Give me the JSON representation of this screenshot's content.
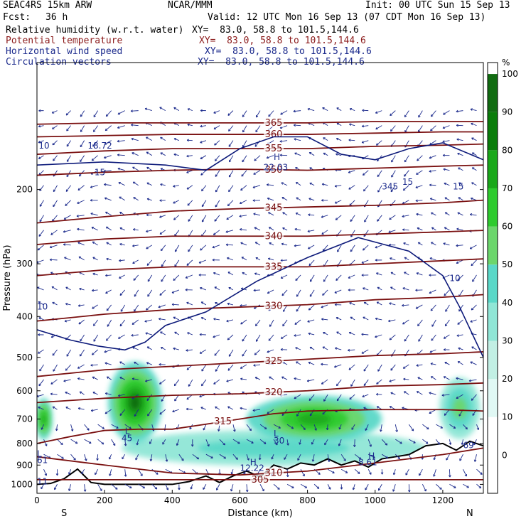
{
  "header": {
    "model": "SEAC4RS 15km ARW",
    "center": "NCAR/MMM",
    "init": "Init: 00 UTC Sun 15 Sep 13",
    "fcst_label": "Fcst:",
    "fcst_value": "36 h",
    "valid": "Valid: 12 UTC Mon 16 Sep 13 (07 CDT Mon 16 Sep 13)"
  },
  "fields": [
    {
      "name": "Relative humidity (w.r.t. water)",
      "xy": "XY=  83.0, 58.8 to 101.5,144.6",
      "color": "#000000"
    },
    {
      "name": "Potential temperature",
      "xy": "XY=  83.0, 58.8 to 101.5,144.6",
      "color": "#8b1a1a"
    },
    {
      "name": "Horizontal wind speed",
      "xy": "XY=  83.0, 58.8 to 101.5,144.6",
      "color": "#1b2a8c"
    },
    {
      "name": "Circulation vectors",
      "xy": "XY=  83.0, 58.8 to 101.5,144.6",
      "color": "#1b2a8c"
    }
  ],
  "chart_data": {
    "type": "heatmap",
    "xlabel": "Distance (km)",
    "ylabel": "Pressure (hPa)",
    "x_ticks": [
      0,
      200,
      400,
      600,
      800,
      1000,
      1200
    ],
    "y_ticks": [
      200,
      300,
      400,
      500,
      600,
      700,
      800,
      900,
      1000
    ],
    "xlim": [
      0,
      1320
    ],
    "ylim": [
      1050,
      100
    ],
    "y_scale": "log",
    "end_labels": {
      "left": "S",
      "right": "N"
    },
    "colorbar": {
      "unit": "%",
      "ticks": [
        0,
        10,
        20,
        30,
        40,
        50,
        60,
        70,
        80,
        90,
        100
      ],
      "colors": [
        "#ffffff",
        "#ffffff",
        "#e0f8f4",
        "#c2efe4",
        "#90e6d6",
        "#5ad8c8",
        "#6cd66c",
        "#2ecb2e",
        "#1aa81a",
        "#0a7d0a",
        "#116b11"
      ]
    },
    "theta_contours": [
      {
        "label": "305",
        "x": [
          0,
          1320
        ],
        "y": [
          975,
          975
        ]
      },
      {
        "label": "310",
        "x": [
          0,
          200,
          400,
          600,
          800,
          1000,
          1200,
          1320
        ],
        "y": [
          860,
          900,
          940,
          950,
          930,
          890,
          850,
          820
        ]
      },
      {
        "label": "315",
        "x": [
          0,
          100,
          200,
          300,
          400,
          500,
          600,
          700,
          800,
          1000,
          1200,
          1320
        ],
        "y": [
          800,
          770,
          745,
          740,
          740,
          720,
          700,
          680,
          670,
          665,
          665,
          670
        ]
      },
      {
        "label": "320",
        "x": [
          0,
          200,
          400,
          600,
          800,
          1000,
          1200,
          1320
        ],
        "y": [
          640,
          625,
          615,
          610,
          600,
          585,
          580,
          575
        ]
      },
      {
        "label": "325",
        "x": [
          0,
          200,
          400,
          600,
          800,
          1000,
          1200,
          1320
        ],
        "y": [
          555,
          535,
          525,
          515,
          505,
          495,
          490,
          485
        ]
      },
      {
        "label": "330",
        "x": [
          0,
          200,
          400,
          600,
          800,
          1000,
          1200,
          1320
        ],
        "y": [
          410,
          395,
          385,
          380,
          375,
          365,
          360,
          355
        ]
      },
      {
        "label": "335",
        "x": [
          0,
          200,
          400,
          600,
          800,
          1000,
          1200,
          1320
        ],
        "y": [
          320,
          310,
          305,
          305,
          305,
          300,
          295,
          292
        ]
      },
      {
        "label": "340",
        "x": [
          0,
          200,
          400,
          600,
          800,
          1000,
          1200,
          1320
        ],
        "y": [
          270,
          262,
          258,
          258,
          258,
          255,
          252,
          250
        ]
      },
      {
        "label": "345",
        "x": [
          0,
          200,
          400,
          600,
          800,
          1000,
          1200,
          1320
        ],
        "y": [
          240,
          232,
          225,
          222,
          220,
          218,
          215,
          212
        ]
      },
      {
        "label": "350",
        "x": [
          0,
          200,
          400,
          600,
          800,
          1000,
          1200,
          1320
        ],
        "y": [
          185,
          182,
          180,
          179,
          180,
          178,
          176,
          175
        ]
      },
      {
        "label": "355",
        "x": [
          0,
          200,
          400,
          600,
          800,
          1000,
          1200,
          1320
        ],
        "y": [
          165,
          162,
          160,
          160,
          160,
          158,
          157,
          156
        ]
      },
      {
        "label": "360",
        "x": [
          0,
          200,
          400,
          600,
          800,
          1000,
          1200,
          1320
        ],
        "y": [
          150,
          149,
          148,
          148,
          148,
          147,
          146,
          146
        ]
      },
      {
        "label": "365",
        "x": [
          0,
          200,
          400,
          600,
          800,
          1000,
          1200,
          1320
        ],
        "y": [
          140,
          139,
          139,
          139,
          139,
          138,
          138,
          138
        ]
      }
    ],
    "wind_contours": [
      {
        "label": "10",
        "x": [
          0,
          100,
          180,
          260,
          320,
          380,
          500,
          650,
          800,
          950,
          1100,
          1200,
          1250,
          1320
        ],
        "y": [
          430,
          455,
          470,
          480,
          460,
          420,
          390,
          330,
          290,
          260,
          280,
          320,
          380,
          500
        ]
      },
      {
        "label": "15",
        "x": [
          0,
          200,
          380,
          500,
          600,
          700,
          800,
          900,
          1000,
          1100,
          1200,
          1320
        ],
        "y": [
          175,
          172,
          175,
          180,
          160,
          150,
          150,
          165,
          170,
          160,
          155,
          170
        ]
      }
    ],
    "rh_blobs": [
      {
        "x": 290,
        "p": 640,
        "rx": 80,
        "rp": 140,
        "value": 90
      },
      {
        "x": 820,
        "p": 700,
        "rx": 200,
        "rp": 90,
        "value": 70
      },
      {
        "x": 1250,
        "p": 660,
        "rx": 60,
        "rp": 110,
        "value": 50
      },
      {
        "x": 20,
        "p": 700,
        "rx": 25,
        "rp": 80,
        "value": 70
      },
      {
        "x": 700,
        "p": 820,
        "rx": 450,
        "rp": 80,
        "value": 40
      }
    ],
    "annotations": [
      {
        "text": "15",
        "x": 170,
        "y": 185
      },
      {
        "text": "15",
        "x": 1080,
        "y": 195
      },
      {
        "text": "15",
        "x": 1230,
        "y": 200
      },
      {
        "text": "10",
        "x": 5,
        "y": 160
      },
      {
        "text": "10",
        "x": 0,
        "y": 385
      },
      {
        "text": "10",
        "x": 1220,
        "y": 330
      },
      {
        "text": "345",
        "x": 1020,
        "y": 200
      },
      {
        "text": "18.72",
        "x": 150,
        "y": 160
      },
      {
        "text": "22.03",
        "x": 670,
        "y": 180
      },
      {
        "text": "H",
        "x": 700,
        "y": 170
      },
      {
        "text": "L",
        "x": 260,
        "y": 760
      },
      {
        "text": "45",
        "x": 250,
        "y": 790
      },
      {
        "text": "L",
        "x": 700,
        "y": 770
      },
      {
        "text": "30",
        "x": 700,
        "y": 800
      },
      {
        "text": "L",
        "x": 0,
        "y": 860
      },
      {
        "text": "61",
        "x": 0,
        "y": 890
      },
      {
        "text": "H",
        "x": 630,
        "y": 900
      },
      {
        "text": "12.22",
        "x": 600,
        "y": 930
      },
      {
        "text": "H",
        "x": 980,
        "y": 870
      },
      {
        "text": "8.61",
        "x": 950,
        "y": 900
      },
      {
        "text": "69",
        "x": 1260,
        "y": 820
      },
      {
        "text": "11",
        "x": 0,
        "y": 1000
      }
    ]
  }
}
